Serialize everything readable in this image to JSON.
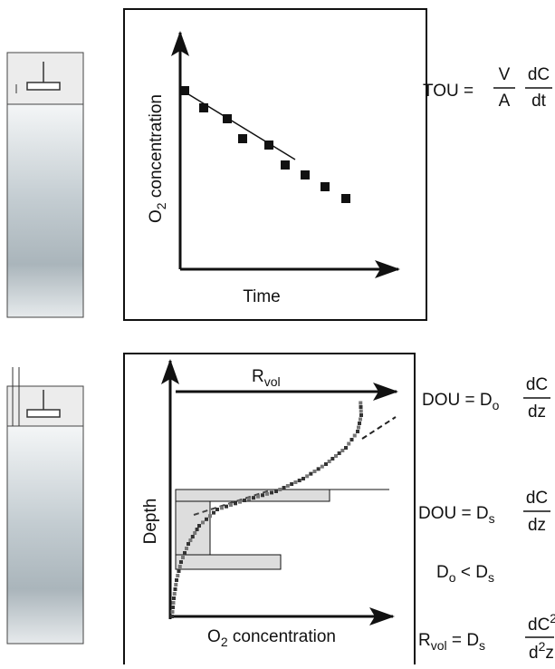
{
  "top_panel": {
    "y_label": {
      "main": "O",
      "sub": "2",
      "rest": " concentration"
    },
    "x_label": "Time",
    "equation": {
      "lhs": "TOU =",
      "numerator_1": "V",
      "denominator_1": "A",
      "numerator_2": "dC",
      "denominator_2": "dt"
    }
  },
  "bottom_panel": {
    "top_axis_label": {
      "main": "R",
      "sub": "vol"
    },
    "y_label": "Depth",
    "x_label": {
      "main": "O",
      "sub": "2",
      "rest": " concentration"
    },
    "equation_1": {
      "lhs": "DOU =",
      "d": "D",
      "sub": "o",
      "numerator": "dC",
      "denominator": "dz"
    },
    "equation_2": {
      "lhs": "DOU =",
      "d": "D",
      "sub": "s",
      "numerator": "dC",
      "denominator": "dz"
    },
    "inequality": {
      "left": "D",
      "left_sub": "o",
      "op": "<",
      "right": "D",
      "right_sub": "s"
    },
    "equation_3": {
      "r": "R",
      "r_sub": "vol",
      "eq": "=",
      "d": "D",
      "sub": "s",
      "numerator": "dC",
      "numerator_sup": "2",
      "denominator_d": "d",
      "denominator_sup": "2",
      "denominator_z": "z"
    }
  }
}
